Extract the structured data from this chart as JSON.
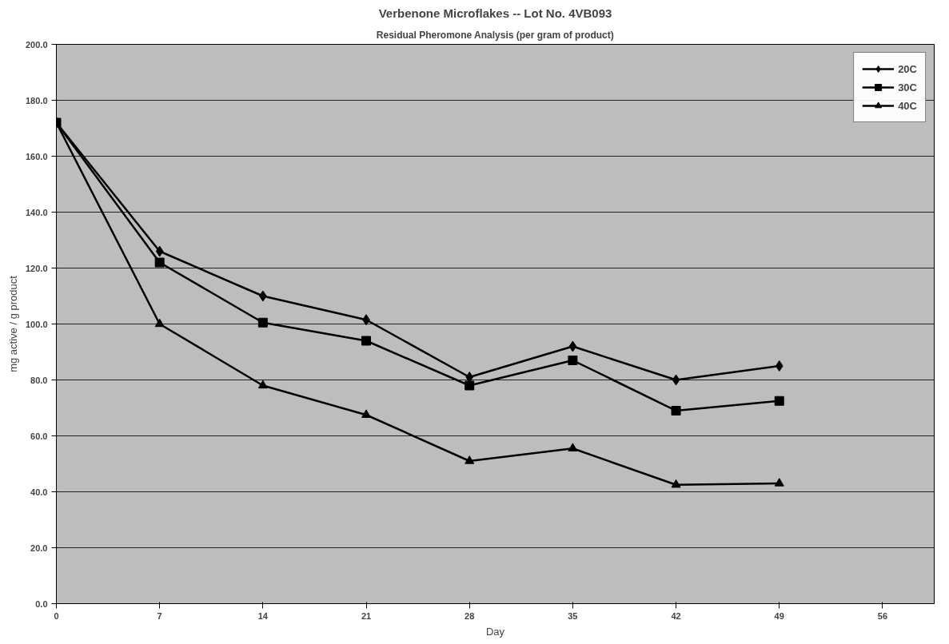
{
  "chart_data": {
    "type": "line",
    "title": "Verbenone Microflakes -- Lot No. 4VB093",
    "subtitle": "Residual Pheromone Analysis (per gram of product)",
    "xlabel": "Day",
    "ylabel": "mg active / g product",
    "x": [
      0,
      7,
      14,
      21,
      28,
      35,
      42,
      49
    ],
    "series": [
      {
        "name": "20C",
        "color": "#000000",
        "marker": "diamond",
        "values": [
          172,
          126,
          110,
          101.5,
          81,
          92,
          80,
          85
        ]
      },
      {
        "name": "30C",
        "color": "#000000",
        "marker": "square",
        "values": [
          172,
          122,
          100.5,
          94,
          78,
          87,
          69,
          72.5
        ]
      },
      {
        "name": "40C",
        "color": "#000000",
        "marker": "triangle",
        "values": [
          172,
          100,
          78,
          67.5,
          51,
          55.5,
          42.5,
          43
        ]
      }
    ],
    "xlim": [
      0,
      59.5
    ],
    "xticks": [
      0,
      7,
      14,
      21,
      28,
      35,
      42,
      49,
      56
    ],
    "ylim": [
      0,
      200
    ],
    "yticks": [
      {
        "value": 0,
        "label": "0.0"
      },
      {
        "value": 20,
        "label": "20.0"
      },
      {
        "value": 40,
        "label": "40.0"
      },
      {
        "value": 60,
        "label": "60.0"
      },
      {
        "value": 80,
        "label": "80.0"
      },
      {
        "value": 100,
        "label": "100.0"
      },
      {
        "value": 120,
        "label": "120.0"
      },
      {
        "value": 140,
        "label": "140.0"
      },
      {
        "value": 160,
        "label": "160.0"
      },
      {
        "value": 180,
        "label": "180.0"
      },
      {
        "value": 200,
        "label": "200.0"
      }
    ],
    "grid": "y",
    "legend": "top right",
    "line_style": "solid"
  }
}
